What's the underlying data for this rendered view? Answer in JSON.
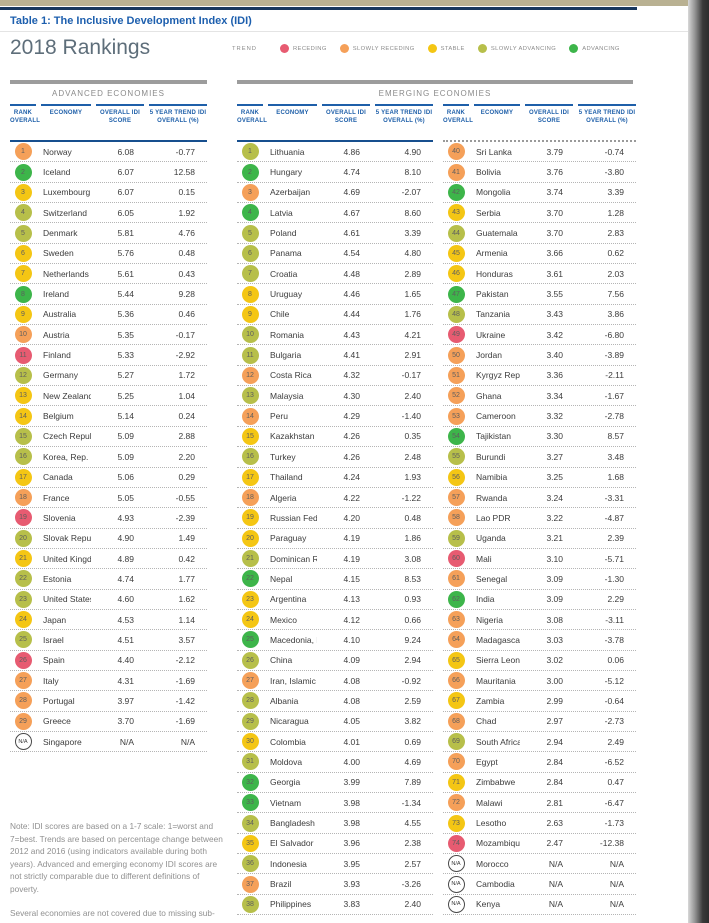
{
  "page": {
    "title": "Table 1: The Inclusive Development Index (IDI)",
    "heading": "2018 Rankings"
  },
  "legend": {
    "label": "TREND",
    "items": [
      {
        "key": "receding",
        "label": "RECEDING"
      },
      {
        "key": "slowly_receding",
        "label": "SLOWLY RECEDING"
      },
      {
        "key": "stable",
        "label": "STABLE"
      },
      {
        "key": "slowly_advancing",
        "label": "SLOWLY ADVANCING"
      },
      {
        "key": "advancing",
        "label": "ADVANCING"
      }
    ]
  },
  "trend_colors": {
    "receding": "#e75b71",
    "slowly_receding": "#f5a059",
    "stable": "#f4c614",
    "slowly_advancing": "#b7bf4a",
    "advancing": "#3db54a",
    "na": "#ffffff"
  },
  "sections": {
    "advanced": "ADVANCED ECONOMIES",
    "emerging": "EMERGING ECONOMIES"
  },
  "columns": {
    "rank": "RANK OVERALL",
    "economy": "ECONOMY",
    "score": "OVERALL IDI SCORE",
    "trend": "5 YEAR TREND IDI OVERALL (%)"
  },
  "tables": {
    "advanced": {
      "rows": [
        {
          "rank": "1",
          "economy": "Norway",
          "score": "6.08",
          "trend": "-0.77",
          "cat": "slowly_receding"
        },
        {
          "rank": "2",
          "economy": "Iceland",
          "score": "6.07",
          "trend": "12.58",
          "cat": "advancing"
        },
        {
          "rank": "3",
          "economy": "Luxembourg",
          "score": "6.07",
          "trend": "0.15",
          "cat": "stable"
        },
        {
          "rank": "4",
          "economy": "Switzerland",
          "score": "6.05",
          "trend": "1.92",
          "cat": "slowly_advancing"
        },
        {
          "rank": "5",
          "economy": "Denmark",
          "score": "5.81",
          "trend": "4.76",
          "cat": "slowly_advancing"
        },
        {
          "rank": "6",
          "economy": "Sweden",
          "score": "5.76",
          "trend": "0.48",
          "cat": "stable"
        },
        {
          "rank": "7",
          "economy": "Netherlands",
          "score": "5.61",
          "trend": "0.43",
          "cat": "stable"
        },
        {
          "rank": "8",
          "economy": "Ireland",
          "score": "5.44",
          "trend": "9.28",
          "cat": "advancing"
        },
        {
          "rank": "9",
          "economy": "Australia",
          "score": "5.36",
          "trend": "0.46",
          "cat": "stable"
        },
        {
          "rank": "10",
          "economy": "Austria",
          "score": "5.35",
          "trend": "-0.17",
          "cat": "slowly_receding"
        },
        {
          "rank": "11",
          "economy": "Finland",
          "score": "5.33",
          "trend": "-2.92",
          "cat": "receding"
        },
        {
          "rank": "12",
          "economy": "Germany",
          "score": "5.27",
          "trend": "1.72",
          "cat": "slowly_advancing"
        },
        {
          "rank": "13",
          "economy": "New Zealand",
          "score": "5.25",
          "trend": "1.04",
          "cat": "stable"
        },
        {
          "rank": "14",
          "economy": "Belgium",
          "score": "5.14",
          "trend": "0.24",
          "cat": "stable"
        },
        {
          "rank": "15",
          "economy": "Czech Republic",
          "score": "5.09",
          "trend": "2.88",
          "cat": "slowly_advancing"
        },
        {
          "rank": "16",
          "economy": "Korea, Rep.",
          "score": "5.09",
          "trend": "2.20",
          "cat": "slowly_advancing"
        },
        {
          "rank": "17",
          "economy": "Canada",
          "score": "5.06",
          "trend": "0.29",
          "cat": "stable"
        },
        {
          "rank": "18",
          "economy": "France",
          "score": "5.05",
          "trend": "-0.55",
          "cat": "slowly_receding"
        },
        {
          "rank": "19",
          "economy": "Slovenia",
          "score": "4.93",
          "trend": "-2.39",
          "cat": "receding"
        },
        {
          "rank": "20",
          "economy": "Slovak Republic",
          "score": "4.90",
          "trend": "1.49",
          "cat": "slowly_advancing"
        },
        {
          "rank": "21",
          "economy": "United Kingdom",
          "score": "4.89",
          "trend": "0.42",
          "cat": "stable"
        },
        {
          "rank": "22",
          "economy": "Estonia",
          "score": "4.74",
          "trend": "1.77",
          "cat": "slowly_advancing"
        },
        {
          "rank": "23",
          "economy": "United States",
          "score": "4.60",
          "trend": "1.62",
          "cat": "slowly_advancing"
        },
        {
          "rank": "24",
          "economy": "Japan",
          "score": "4.53",
          "trend": "1.14",
          "cat": "stable"
        },
        {
          "rank": "25",
          "economy": "Israel",
          "score": "4.51",
          "trend": "3.57",
          "cat": "slowly_advancing"
        },
        {
          "rank": "26",
          "economy": "Spain",
          "score": "4.40",
          "trend": "-2.12",
          "cat": "receding"
        },
        {
          "rank": "27",
          "economy": "Italy",
          "score": "4.31",
          "trend": "-1.69",
          "cat": "slowly_receding"
        },
        {
          "rank": "28",
          "economy": "Portugal",
          "score": "3.97",
          "trend": "-1.42",
          "cat": "slowly_receding"
        },
        {
          "rank": "29",
          "economy": "Greece",
          "score": "3.70",
          "trend": "-1.69",
          "cat": "slowly_receding"
        },
        {
          "rank": "N/A",
          "economy": "Singapore",
          "score": "N/A",
          "trend": "N/A",
          "cat": "na"
        }
      ]
    },
    "emerging1": {
      "rows": [
        {
          "rank": "1",
          "economy": "Lithuania",
          "score": "4.86",
          "trend": "4.90",
          "cat": "slowly_advancing"
        },
        {
          "rank": "2",
          "economy": "Hungary",
          "score": "4.74",
          "trend": "8.10",
          "cat": "advancing"
        },
        {
          "rank": "3",
          "economy": "Azerbaijan",
          "score": "4.69",
          "trend": "-2.07",
          "cat": "slowly_receding"
        },
        {
          "rank": "4",
          "economy": "Latvia",
          "score": "4.67",
          "trend": "8.60",
          "cat": "advancing"
        },
        {
          "rank": "5",
          "economy": "Poland",
          "score": "4.61",
          "trend": "3.39",
          "cat": "slowly_advancing"
        },
        {
          "rank": "6",
          "economy": "Panama",
          "score": "4.54",
          "trend": "4.80",
          "cat": "slowly_advancing"
        },
        {
          "rank": "7",
          "economy": "Croatia",
          "score": "4.48",
          "trend": "2.89",
          "cat": "slowly_advancing"
        },
        {
          "rank": "8",
          "economy": "Uruguay",
          "score": "4.46",
          "trend": "1.65",
          "cat": "stable"
        },
        {
          "rank": "9",
          "economy": "Chile",
          "score": "4.44",
          "trend": "1.76",
          "cat": "stable"
        },
        {
          "rank": "10",
          "economy": "Romania",
          "score": "4.43",
          "trend": "4.21",
          "cat": "slowly_advancing"
        },
        {
          "rank": "11",
          "economy": "Bulgaria",
          "score": "4.41",
          "trend": "2.91",
          "cat": "slowly_advancing"
        },
        {
          "rank": "12",
          "economy": "Costa Rica",
          "score": "4.32",
          "trend": "-0.17",
          "cat": "slowly_receding"
        },
        {
          "rank": "13",
          "economy": "Malaysia",
          "score": "4.30",
          "trend": "2.40",
          "cat": "slowly_advancing"
        },
        {
          "rank": "14",
          "economy": "Peru",
          "score": "4.29",
          "trend": "-1.40",
          "cat": "slowly_receding"
        },
        {
          "rank": "15",
          "economy": "Kazakhstan",
          "score": "4.26",
          "trend": "0.35",
          "cat": "stable"
        },
        {
          "rank": "16",
          "economy": "Turkey",
          "score": "4.26",
          "trend": "2.48",
          "cat": "slowly_advancing"
        },
        {
          "rank": "17",
          "economy": "Thailand",
          "score": "4.24",
          "trend": "1.93",
          "cat": "stable"
        },
        {
          "rank": "18",
          "economy": "Algeria",
          "score": "4.22",
          "trend": "-1.22",
          "cat": "slowly_receding"
        },
        {
          "rank": "19",
          "economy": "Russian Federation",
          "score": "4.20",
          "trend": "0.48",
          "cat": "stable"
        },
        {
          "rank": "20",
          "economy": "Paraguay",
          "score": "4.19",
          "trend": "1.86",
          "cat": "stable"
        },
        {
          "rank": "21",
          "economy": "Dominican Republic",
          "score": "4.19",
          "trend": "3.08",
          "cat": "slowly_advancing"
        },
        {
          "rank": "22",
          "economy": "Nepal",
          "score": "4.15",
          "trend": "8.53",
          "cat": "advancing"
        },
        {
          "rank": "23",
          "economy": "Argentina",
          "score": "4.13",
          "trend": "0.93",
          "cat": "stable"
        },
        {
          "rank": "24",
          "economy": "Mexico",
          "score": "4.12",
          "trend": "0.66",
          "cat": "stable"
        },
        {
          "rank": "25",
          "economy": "Macedonia, FYR",
          "score": "4.10",
          "trend": "9.24",
          "cat": "advancing"
        },
        {
          "rank": "26",
          "economy": "China",
          "score": "4.09",
          "trend": "2.94",
          "cat": "slowly_advancing"
        },
        {
          "rank": "27",
          "economy": "Iran, Islamic Rep.",
          "score": "4.08",
          "trend": "-0.92",
          "cat": "slowly_receding"
        },
        {
          "rank": "28",
          "economy": "Albania",
          "score": "4.08",
          "trend": "2.59",
          "cat": "slowly_advancing"
        },
        {
          "rank": "29",
          "economy": "Nicaragua",
          "score": "4.05",
          "trend": "3.82",
          "cat": "slowly_advancing"
        },
        {
          "rank": "30",
          "economy": "Colombia",
          "score": "4.01",
          "trend": "0.69",
          "cat": "stable"
        },
        {
          "rank": "31",
          "economy": "Moldova",
          "score": "4.00",
          "trend": "4.69",
          "cat": "slowly_advancing"
        },
        {
          "rank": "32",
          "economy": "Georgia",
          "score": "3.99",
          "trend": "7.89",
          "cat": "advancing"
        },
        {
          "rank": "33",
          "economy": "Vietnam",
          "score": "3.98",
          "trend": "-1.34",
          "cat": "advancing"
        },
        {
          "rank": "34",
          "economy": "Bangladesh",
          "score": "3.98",
          "trend": "4.55",
          "cat": "slowly_advancing"
        },
        {
          "rank": "35",
          "economy": "El Salvador",
          "score": "3.96",
          "trend": "2.38",
          "cat": "stable"
        },
        {
          "rank": "36",
          "economy": "Indonesia",
          "score": "3.95",
          "trend": "2.57",
          "cat": "slowly_advancing"
        },
        {
          "rank": "37",
          "economy": "Brazil",
          "score": "3.93",
          "trend": "-3.26",
          "cat": "slowly_receding"
        },
        {
          "rank": "38",
          "economy": "Philippines",
          "score": "3.83",
          "trend": "2.40",
          "cat": "slowly_advancing"
        }
      ]
    },
    "emerging2": {
      "rows": [
        {
          "rank": "40",
          "economy": "Sri Lanka",
          "score": "3.79",
          "trend": "-0.74",
          "cat": "slowly_receding"
        },
        {
          "rank": "41",
          "economy": "Bolivia",
          "score": "3.76",
          "trend": "-3.80",
          "cat": "slowly_receding"
        },
        {
          "rank": "42",
          "economy": "Mongolia",
          "score": "3.74",
          "trend": "3.39",
          "cat": "advancing"
        },
        {
          "rank": "43",
          "economy": "Serbia",
          "score": "3.70",
          "trend": "1.28",
          "cat": "stable"
        },
        {
          "rank": "44",
          "economy": "Guatemala",
          "score": "3.70",
          "trend": "2.83",
          "cat": "slowly_advancing"
        },
        {
          "rank": "45",
          "economy": "Armenia",
          "score": "3.66",
          "trend": "0.62",
          "cat": "stable"
        },
        {
          "rank": "46",
          "economy": "Honduras",
          "score": "3.61",
          "trend": "2.03",
          "cat": "stable"
        },
        {
          "rank": "47",
          "economy": "Pakistan",
          "score": "3.55",
          "trend": "7.56",
          "cat": "advancing"
        },
        {
          "rank": "48",
          "economy": "Tanzania",
          "score": "3.43",
          "trend": "3.86",
          "cat": "slowly_advancing"
        },
        {
          "rank": "49",
          "economy": "Ukraine",
          "score": "3.42",
          "trend": "-6.80",
          "cat": "receding"
        },
        {
          "rank": "50",
          "economy": "Jordan",
          "score": "3.40",
          "trend": "-3.89",
          "cat": "slowly_receding"
        },
        {
          "rank": "51",
          "economy": "Kyrgyz Republic",
          "score": "3.36",
          "trend": "-2.11",
          "cat": "slowly_receding"
        },
        {
          "rank": "52",
          "economy": "Ghana",
          "score": "3.34",
          "trend": "-1.67",
          "cat": "slowly_receding"
        },
        {
          "rank": "53",
          "economy": "Cameroon",
          "score": "3.32",
          "trend": "-2.78",
          "cat": "slowly_receding"
        },
        {
          "rank": "54",
          "economy": "Tajikistan",
          "score": "3.30",
          "trend": "8.57",
          "cat": "advancing"
        },
        {
          "rank": "55",
          "economy": "Burundi",
          "score": "3.27",
          "trend": "3.48",
          "cat": "slowly_advancing"
        },
        {
          "rank": "56",
          "economy": "Namibia",
          "score": "3.25",
          "trend": "1.68",
          "cat": "stable"
        },
        {
          "rank": "57",
          "economy": "Rwanda",
          "score": "3.24",
          "trend": "-3.31",
          "cat": "slowly_receding"
        },
        {
          "rank": "58",
          "economy": "Lao PDR",
          "score": "3.22",
          "trend": "-4.87",
          "cat": "slowly_receding"
        },
        {
          "rank": "59",
          "economy": "Uganda",
          "score": "3.21",
          "trend": "2.39",
          "cat": "slowly_advancing"
        },
        {
          "rank": "60",
          "economy": "Mali",
          "score": "3.10",
          "trend": "-5.71",
          "cat": "receding"
        },
        {
          "rank": "61",
          "economy": "Senegal",
          "score": "3.09",
          "trend": "-1.30",
          "cat": "slowly_receding"
        },
        {
          "rank": "62",
          "economy": "India",
          "score": "3.09",
          "trend": "2.29",
          "cat": "advancing"
        },
        {
          "rank": "63",
          "economy": "Nigeria",
          "score": "3.08",
          "trend": "-3.11",
          "cat": "slowly_receding"
        },
        {
          "rank": "64",
          "economy": "Madagascar",
          "score": "3.03",
          "trend": "-3.78",
          "cat": "slowly_receding"
        },
        {
          "rank": "65",
          "economy": "Sierra Leone",
          "score": "3.02",
          "trend": "0.06",
          "cat": "stable"
        },
        {
          "rank": "66",
          "economy": "Mauritania",
          "score": "3.00",
          "trend": "-5.12",
          "cat": "slowly_receding"
        },
        {
          "rank": "67",
          "economy": "Zambia",
          "score": "2.99",
          "trend": "-0.64",
          "cat": "stable"
        },
        {
          "rank": "68",
          "economy": "Chad",
          "score": "2.97",
          "trend": "-2.73",
          "cat": "slowly_receding"
        },
        {
          "rank": "69",
          "economy": "South Africa",
          "score": "2.94",
          "trend": "2.49",
          "cat": "slowly_advancing"
        },
        {
          "rank": "70",
          "economy": "Egypt",
          "score": "2.84",
          "trend": "-6.52",
          "cat": "slowly_receding"
        },
        {
          "rank": "71",
          "economy": "Zimbabwe",
          "score": "2.84",
          "trend": "0.47",
          "cat": "stable"
        },
        {
          "rank": "72",
          "economy": "Malawi",
          "score": "2.81",
          "trend": "-6.47",
          "cat": "slowly_receding"
        },
        {
          "rank": "73",
          "economy": "Lesotho",
          "score": "2.63",
          "trend": "-1.73",
          "cat": "stable"
        },
        {
          "rank": "74",
          "economy": "Mozambique",
          "score": "2.47",
          "trend": "-12.38",
          "cat": "receding"
        },
        {
          "rank": "N/A",
          "economy": "Morocco",
          "score": "N/A",
          "trend": "N/A",
          "cat": "na"
        },
        {
          "rank": "N/A",
          "economy": "Cambodia",
          "score": "N/A",
          "trend": "N/A",
          "cat": "na"
        },
        {
          "rank": "N/A",
          "economy": "Kenya",
          "score": "N/A",
          "trend": "N/A",
          "cat": "na"
        }
      ]
    }
  },
  "note": {
    "p1": "Note: IDI scores are based on a 1-7 scale: 1=worst and 7=best. Trends are based on percentage change between 2012 and 2016 (using indicators available during both years). Advanced and emerging economy IDI scores are not strictly comparable due to different definitions of poverty.",
    "p2": "Several economies are not covered due to missing sub-pillar data including Cambodia, Kenya, Morocco, and Singapore, which were missing"
  }
}
